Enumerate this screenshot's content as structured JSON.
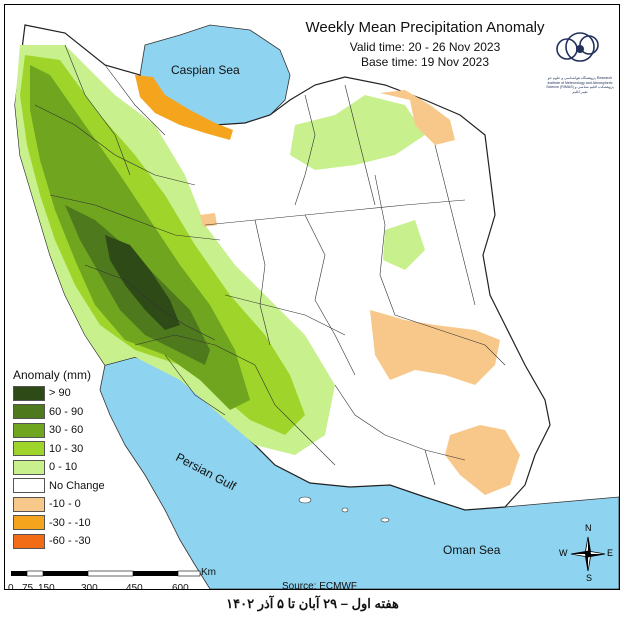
{
  "header": {
    "title": "Weekly Mean Precipitation Anomaly",
    "valid_time": "Valid time: 20 - 26 Nov 2023",
    "base_time": "Base time: 19 Nov 2023"
  },
  "labels": {
    "caspian_sea": "Caspian Sea",
    "persian_gulf": "Persian Gulf",
    "oman_sea": "Oman Sea"
  },
  "legend": {
    "title": "Anomaly (mm)",
    "items": [
      {
        "label": "> 90",
        "color": "#2e4a16"
      },
      {
        "label": "60 - 90",
        "color": "#4e7a1d"
      },
      {
        "label": "30 - 60",
        "color": "#6fa51f"
      },
      {
        "label": "10 - 30",
        "color": "#9fd52a"
      },
      {
        "label": "0 - 10",
        "color": "#c8f08c"
      },
      {
        "label": "No Change",
        "color": "#ffffff"
      },
      {
        "label": "-10 - 0",
        "color": "#f8c88a"
      },
      {
        "label": "-30 - -10",
        "color": "#f5a41e"
      },
      {
        "label": "-60 - -30",
        "color": "#f26b16"
      }
    ]
  },
  "scale": {
    "ticks": [
      "0",
      "75",
      "150",
      "300",
      "450",
      "600"
    ],
    "unit": "Km"
  },
  "compass": {
    "n": "N",
    "s": "S",
    "e": "E",
    "w": "W"
  },
  "logo": {
    "text": "پژوهشگاه هواشناسی و علوم جو Research Institute of Meteorology and Atmospheric Science (RIMAS) پژوهشکده اقلیم شناسی و تغییر اقلیم"
  },
  "source": "Source: ECMWF",
  "caption": "هفته اول – ۲۹ آبان تا ۵ آذر ۱۴۰۲",
  "colors": {
    "water": "#8ed3f0",
    "country": "#ffffff",
    "border": "#333333"
  }
}
